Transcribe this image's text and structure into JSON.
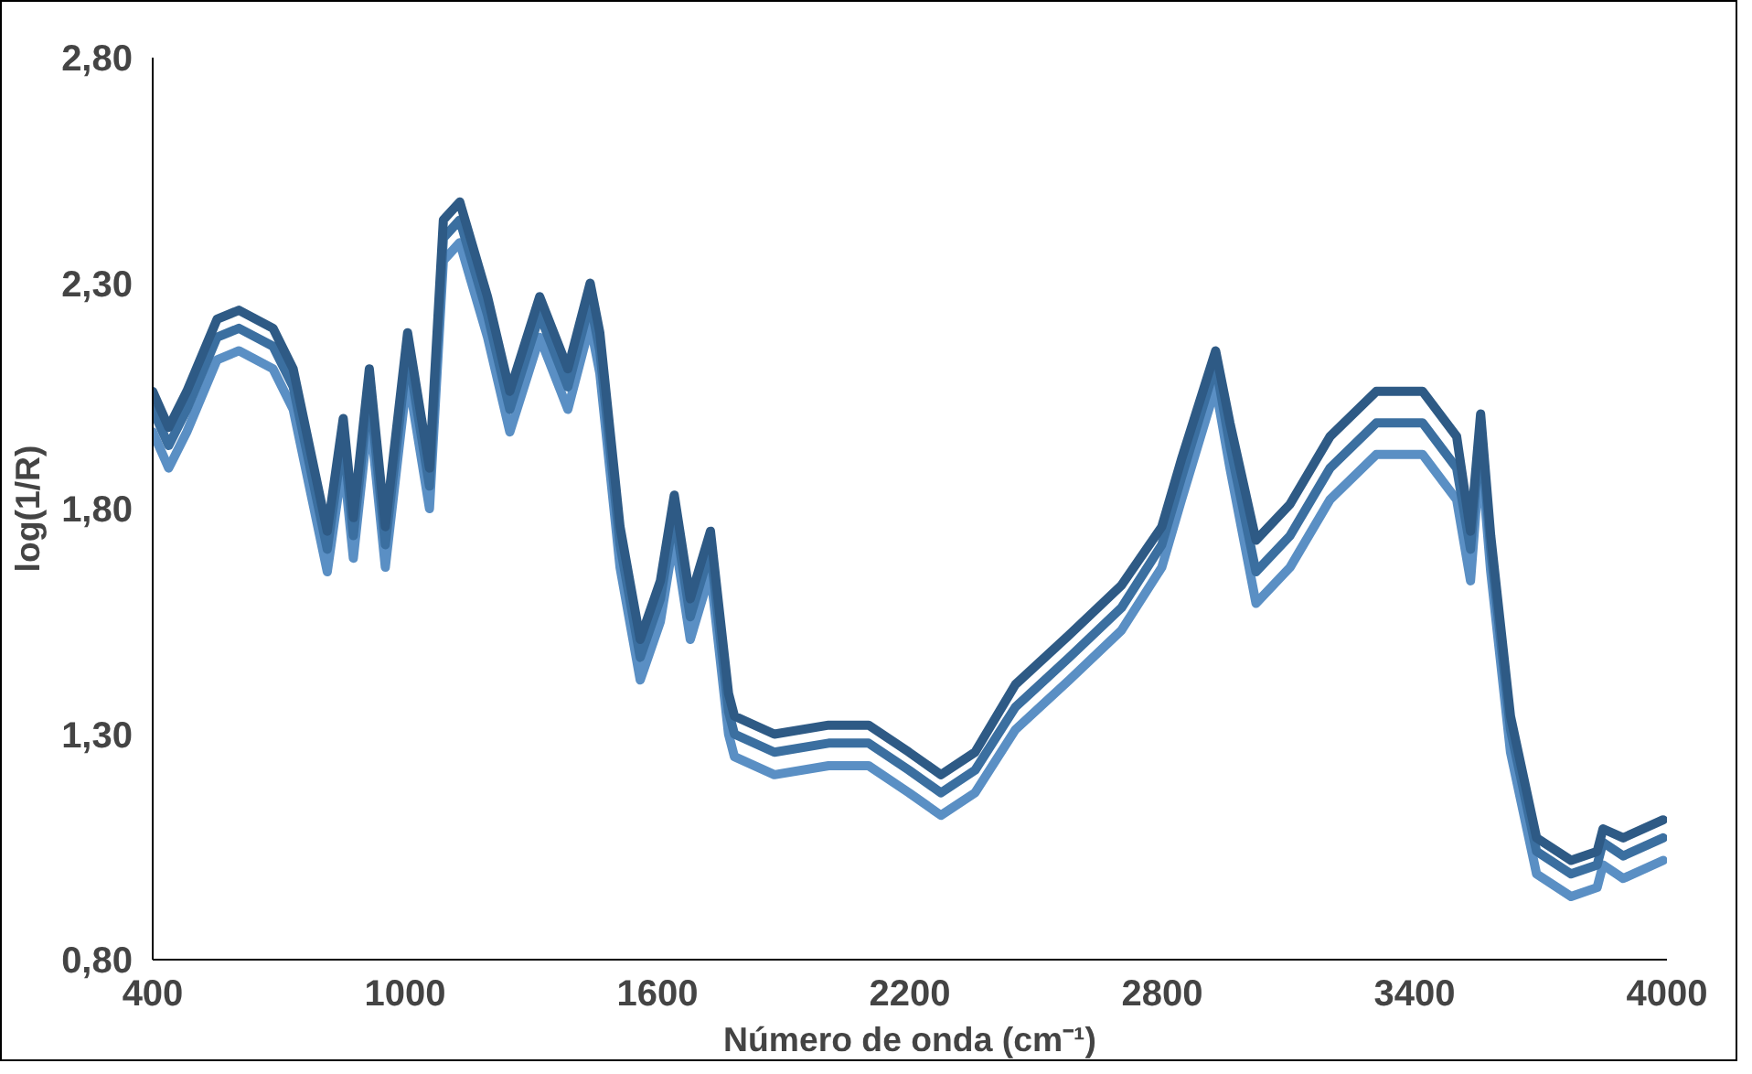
{
  "chart_data": {
    "type": "line",
    "xlabel": "Número de onda (cm⁻¹)",
    "ylabel": "log(1/R)",
    "xlim": [
      400,
      4000
    ],
    "xticks": [
      400,
      1000,
      1600,
      2200,
      2800,
      3400,
      4000
    ],
    "ylim": [
      0.8,
      2.8
    ],
    "yticks": [
      {
        "value": 0.8,
        "label": "0,80"
      },
      {
        "value": 1.3,
        "label": "1,30"
      },
      {
        "value": 1.8,
        "label": "1,80"
      },
      {
        "value": 2.3,
        "label": "2,30"
      },
      {
        "value": 2.8,
        "label": "2,80"
      }
    ],
    "grid": false,
    "x": [
      400,
      438,
      481,
      553,
      605,
      686,
      734,
      815,
      853,
      877,
      915,
      953,
      1006,
      1058,
      1091,
      1130,
      1196,
      1249,
      1320,
      1387,
      1440,
      1463,
      1511,
      1559,
      1607,
      1640,
      1678,
      1726,
      1769,
      1783,
      1878,
      2007,
      2102,
      2198,
      2274,
      2355,
      2451,
      2579,
      2703,
      2799,
      2846,
      2927,
      2961,
      3023,
      3104,
      3199,
      3309,
      3419,
      3500,
      3533,
      3557,
      3581,
      3628,
      3690,
      3772,
      3834,
      3848,
      3896,
      3991
    ],
    "series": [
      {
        "color": "#5a8fc4",
        "values": [
          1.97,
          1.89,
          1.97,
          2.13,
          2.15,
          2.11,
          2.02,
          1.66,
          1.91,
          1.69,
          2.02,
          1.67,
          2.1,
          1.8,
          2.35,
          2.39,
          2.18,
          1.97,
          2.18,
          2.02,
          2.21,
          2.1,
          1.67,
          1.42,
          1.55,
          1.74,
          1.51,
          1.66,
          1.3,
          1.25,
          1.21,
          1.23,
          1.23,
          1.17,
          1.12,
          1.17,
          1.31,
          1.42,
          1.53,
          1.67,
          1.82,
          2.07,
          1.89,
          1.59,
          1.67,
          1.82,
          1.92,
          1.92,
          1.82,
          1.64,
          1.93,
          1.66,
          1.26,
          0.99,
          0.94,
          0.96,
          1.01,
          0.98,
          1.02
        ]
      },
      {
        "color": "#3b6fa0",
        "values": [
          2.02,
          1.94,
          2.02,
          2.18,
          2.2,
          2.16,
          2.07,
          1.71,
          1.96,
          1.74,
          2.07,
          1.72,
          2.15,
          1.85,
          2.4,
          2.44,
          2.23,
          2.02,
          2.23,
          2.07,
          2.26,
          2.15,
          1.72,
          1.47,
          1.6,
          1.79,
          1.56,
          1.71,
          1.35,
          1.3,
          1.26,
          1.28,
          1.28,
          1.22,
          1.17,
          1.22,
          1.36,
          1.47,
          1.58,
          1.72,
          1.87,
          2.12,
          1.94,
          1.66,
          1.74,
          1.89,
          1.99,
          1.99,
          1.89,
          1.71,
          1.98,
          1.71,
          1.31,
          1.04,
          0.99,
          1.01,
          1.06,
          1.03,
          1.07
        ]
      },
      {
        "color": "#2e5a85",
        "values": [
          2.06,
          1.98,
          2.06,
          2.22,
          2.24,
          2.2,
          2.11,
          1.75,
          2.0,
          1.78,
          2.11,
          1.76,
          2.19,
          1.89,
          2.44,
          2.48,
          2.27,
          2.06,
          2.27,
          2.11,
          2.3,
          2.19,
          1.76,
          1.51,
          1.64,
          1.83,
          1.6,
          1.75,
          1.39,
          1.34,
          1.3,
          1.32,
          1.32,
          1.26,
          1.21,
          1.26,
          1.41,
          1.52,
          1.63,
          1.76,
          1.91,
          2.15,
          1.99,
          1.73,
          1.81,
          1.96,
          2.06,
          2.06,
          1.96,
          1.75,
          2.01,
          1.74,
          1.34,
          1.07,
          1.02,
          1.04,
          1.09,
          1.07,
          1.11
        ]
      }
    ]
  }
}
